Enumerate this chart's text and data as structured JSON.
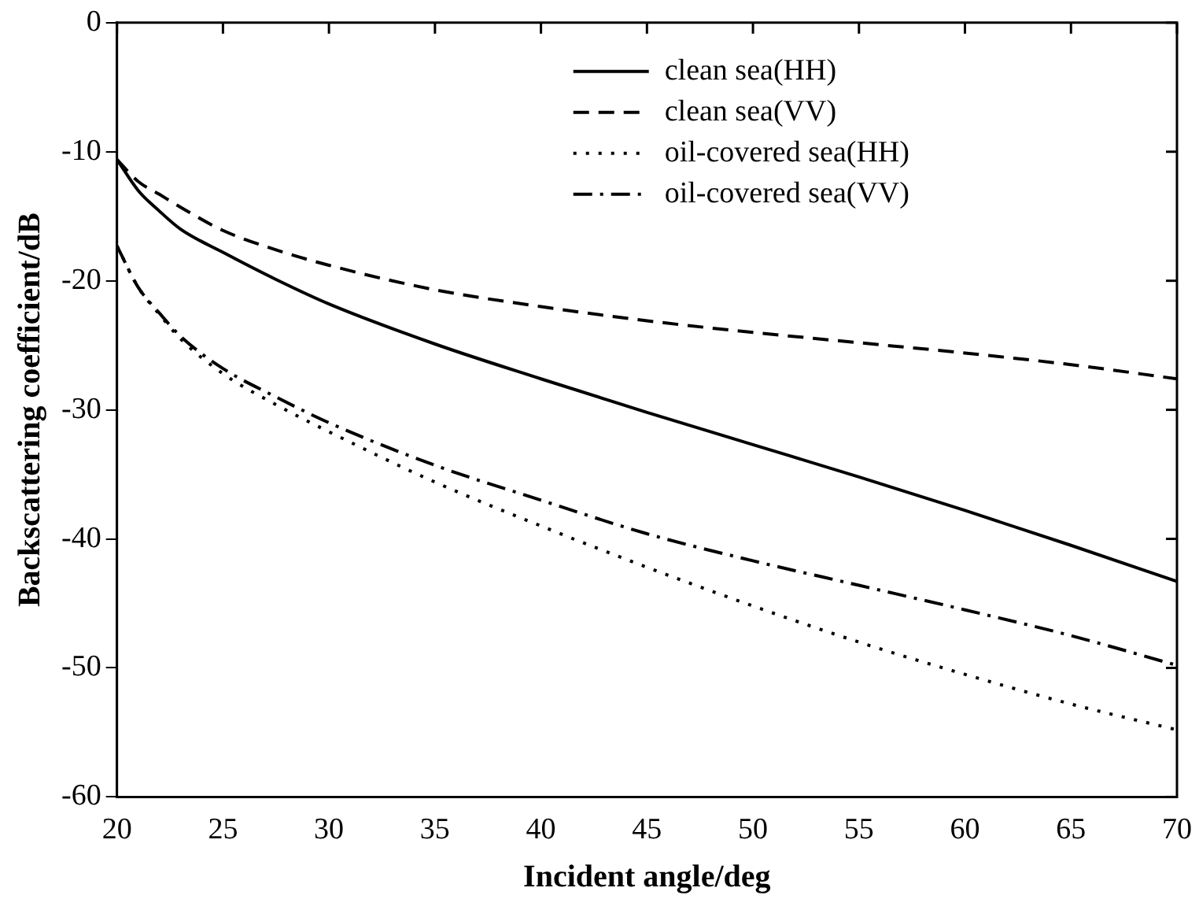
{
  "chart_data": {
    "type": "line",
    "xlabel": "Incident angle/deg",
    "ylabel": "Backscattering coefficient/dB",
    "x": [
      20,
      21,
      22,
      23,
      25,
      27.5,
      30,
      35,
      40,
      45,
      50,
      55,
      60,
      65,
      70
    ],
    "series": [
      {
        "name": "clean sea(HH)",
        "color": "#000000",
        "line_style": "solid",
        "values": [
          -10.6,
          -13,
          -14.6,
          -16,
          -17.8,
          -19.9,
          -21.8,
          -24.9,
          -27.6,
          -30.2,
          -32.7,
          -35.2,
          -37.8,
          -40.5,
          -43.3
        ]
      },
      {
        "name": "clean sea(VV)",
        "color": "#000000",
        "line_style": "dashed",
        "values": [
          -10.6,
          -12.3,
          -13.3,
          -14.3,
          -16.1,
          -17.6,
          -18.8,
          -20.7,
          -22.0,
          -23.1,
          -24.0,
          -24.8,
          -25.6,
          -26.5,
          -27.6
        ]
      },
      {
        "name": "oil-covered sea(HH)",
        "color": "#000000",
        "line_style": "dotted",
        "values": [
          -17.3,
          -20.5,
          -22.6,
          -24.5,
          -27.2,
          -29.6,
          -31.7,
          -35.6,
          -39.0,
          -42.2,
          -45.2,
          -48.0,
          -50.5,
          -52.8,
          -54.8
        ]
      },
      {
        "name": "oil-covered sea(VV)",
        "color": "#000000",
        "line_style": "dashdot",
        "values": [
          -17.3,
          -20.5,
          -22.5,
          -24.3,
          -26.8,
          -29.0,
          -31.0,
          -34.3,
          -37.0,
          -39.6,
          -41.7,
          -43.6,
          -45.5,
          -47.5,
          -49.8
        ]
      }
    ],
    "xlim": [
      20,
      70
    ],
    "xticks": [
      20,
      25,
      30,
      35,
      40,
      45,
      50,
      55,
      60,
      65,
      70
    ],
    "ylim": [
      -60,
      0
    ],
    "yticks": [
      -60,
      -50,
      -40,
      -30,
      -20,
      -10,
      0
    ],
    "grid": false,
    "legend": "top",
    "marker": "none"
  }
}
